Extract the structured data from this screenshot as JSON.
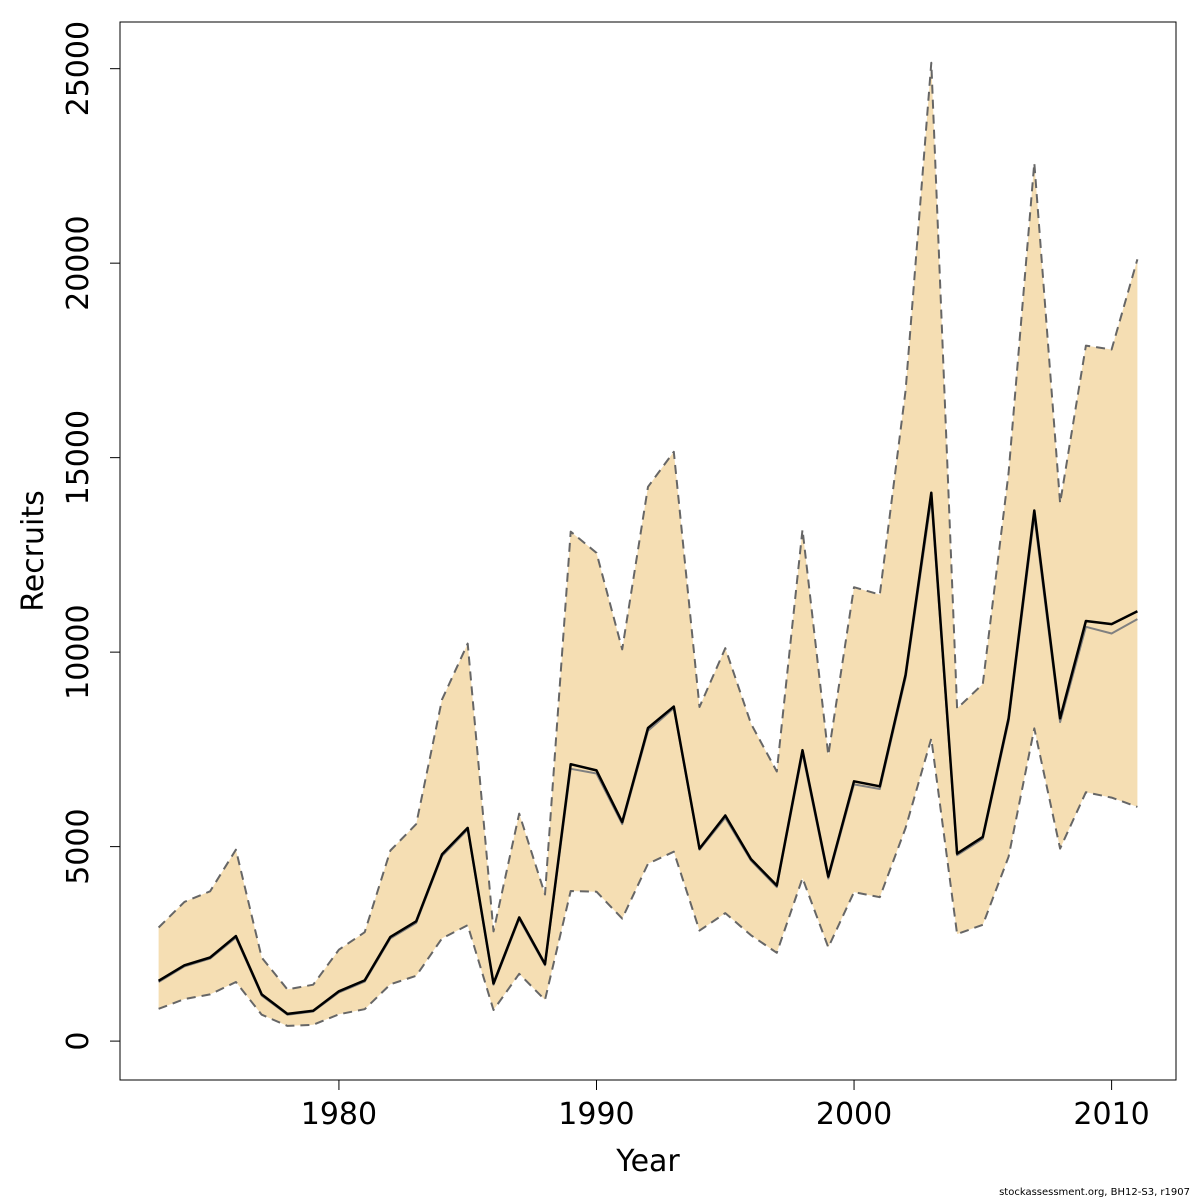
{
  "chart_data": {
    "type": "area",
    "xlabel": "Year",
    "ylabel": "Recruits",
    "xlim": [
      1971.5,
      2012.5
    ],
    "ylim": [
      -1000,
      26200
    ],
    "x_ticks": [
      1980,
      1990,
      2000,
      2010
    ],
    "y_ticks": [
      0,
      5000,
      10000,
      15000,
      20000,
      25000
    ],
    "grid": false,
    "x": [
      1973,
      1974,
      1975,
      1976,
      1977,
      1978,
      1979,
      1980,
      1981,
      1982,
      1983,
      1984,
      1985,
      1986,
      1987,
      1988,
      1989,
      1990,
      1991,
      1992,
      1993,
      1994,
      1995,
      1996,
      1997,
      1998,
      1999,
      2000,
      2001,
      2002,
      2003,
      2004,
      2005,
      2006,
      2007,
      2008,
      2009,
      2010,
      2011
    ],
    "series": [
      {
        "role": "estimate",
        "color": "#000000",
        "values": [
          1550,
          1950,
          2150,
          2700,
          1200,
          700,
          780,
          1280,
          1560,
          2680,
          3080,
          4800,
          5480,
          1480,
          3180,
          1980,
          7120,
          6960,
          5630,
          8050,
          8600,
          4950,
          5800,
          4680,
          4000,
          7480,
          4230,
          6680,
          6550,
          9420,
          14100,
          4820,
          5250,
          8300,
          13640,
          8300,
          10800,
          10720,
          11050
        ]
      },
      {
        "role": "estimate (alternate)",
        "color": "#808080",
        "values": [
          1520,
          1920,
          2120,
          2660,
          1170,
          680,
          760,
          1250,
          1530,
          2640,
          3040,
          4760,
          5440,
          1450,
          3140,
          1950,
          7000,
          6880,
          5580,
          7980,
          8560,
          4920,
          5740,
          4640,
          3960,
          7400,
          4180,
          6600,
          6480,
          9340,
          13950,
          4780,
          5200,
          8220,
          13500,
          8200,
          10650,
          10480,
          10850
        ]
      },
      {
        "role": "upper bound",
        "color": "#666666",
        "values": [
          2920,
          3580,
          3850,
          4920,
          2150,
          1330,
          1450,
          2350,
          2800,
          4900,
          5580,
          8780,
          10220,
          2820,
          5850,
          3770,
          13100,
          12550,
          10070,
          14250,
          15150,
          8590,
          10100,
          8160,
          6930,
          13150,
          7350,
          11670,
          11480,
          16730,
          25150,
          8550,
          9180,
          14610,
          22580,
          13830,
          17880,
          17780,
          20100
        ]
      },
      {
        "role": "lower bound",
        "color": "#666666",
        "values": [
          830,
          1080,
          1200,
          1520,
          680,
          390,
          420,
          690,
          820,
          1460,
          1680,
          2640,
          2980,
          800,
          1730,
          1060,
          3860,
          3840,
          3150,
          4560,
          4870,
          2840,
          3290,
          2720,
          2270,
          4190,
          2410,
          3830,
          3700,
          5480,
          7780,
          2750,
          2990,
          4740,
          8040,
          4950,
          6400,
          6260,
          6020
        ]
      }
    ],
    "band_color": "#f5deb3"
  },
  "footer": "stockassessment.org, BH12-S3, r1907"
}
